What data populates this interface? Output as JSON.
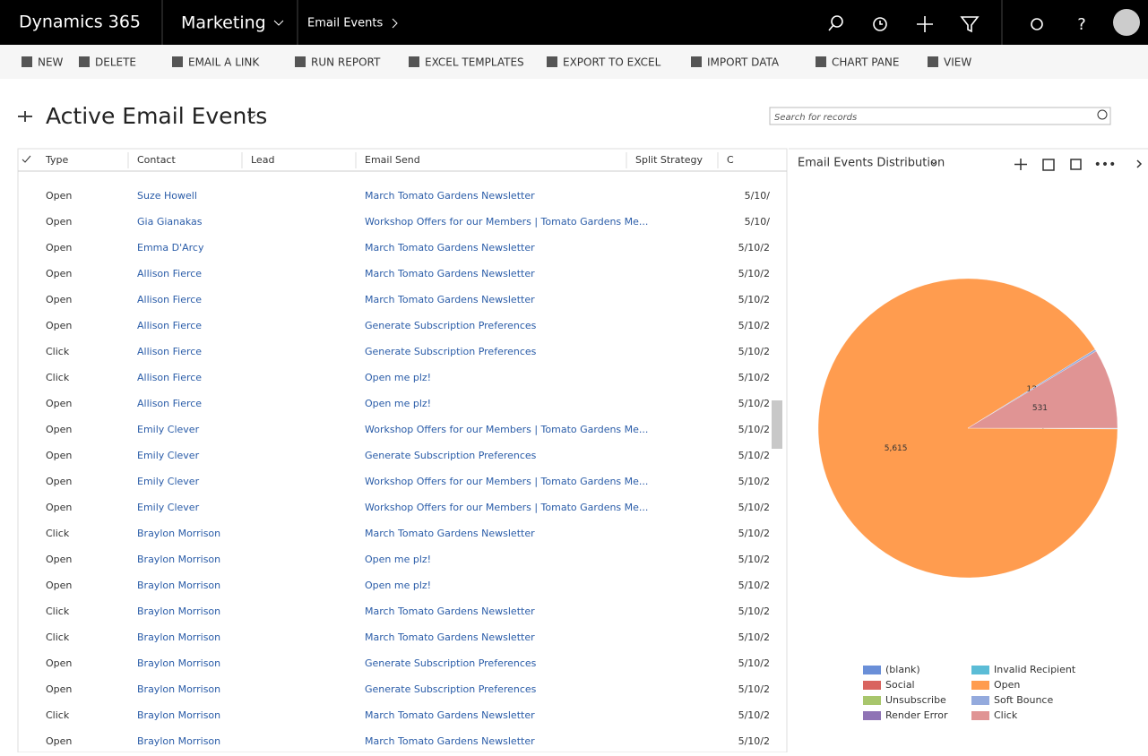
{
  "header": {
    "app": "Dynamics 365",
    "area": "Marketing",
    "breadcrumb": "Email Events"
  },
  "toolbar": [
    "NEW",
    "DELETE",
    "EMAIL A LINK",
    "RUN REPORT",
    "EXCEL TEMPLATES",
    "EXPORT TO EXCEL",
    "IMPORT DATA",
    "CHART PANE",
    "VIEW"
  ],
  "view": {
    "title": "Active Email Events",
    "search_placeholder": "Search for records"
  },
  "grid": {
    "columns": [
      "Type",
      "Contact",
      "Lead",
      "Email Send",
      "Split Strategy",
      "C"
    ],
    "rows": [
      [
        "Open",
        "Suze Howell",
        "March Tomato Gardens Newsletter",
        "5/10/"
      ],
      [
        "Open",
        "Gia Gianakas",
        "Workshop Offers for our Members | Tomato Gardens Me...",
        "5/10/"
      ],
      [
        "Open",
        "Emma D'Arcy",
        "March Tomato Gardens Newsletter",
        "5/10/2"
      ],
      [
        "Open",
        "Allison Fierce",
        "March Tomato Gardens Newsletter",
        "5/10/2"
      ],
      [
        "Open",
        "Allison Fierce",
        "March Tomato Gardens Newsletter",
        "5/10/2"
      ],
      [
        "Open",
        "Allison Fierce",
        "Generate Subscription Preferences",
        "5/10/2"
      ],
      [
        "Click",
        "Allison Fierce",
        "Generate Subscription Preferences",
        "5/10/2"
      ],
      [
        "Click",
        "Allison Fierce",
        "Open me plz!",
        "5/10/2"
      ],
      [
        "Open",
        "Allison Fierce",
        "Open me plz!",
        "5/10/2"
      ],
      [
        "Open",
        "Emily Clever",
        "Workshop Offers for our Members | Tomato Gardens Me...",
        "5/10/2"
      ],
      [
        "Open",
        "Emily Clever",
        "Generate Subscription Preferences",
        "5/10/2"
      ],
      [
        "Open",
        "Emily Clever",
        "Workshop Offers for our Members | Tomato Gardens Me...",
        "5/10/2"
      ],
      [
        "Open",
        "Emily Clever",
        "Workshop Offers for our Members | Tomato Gardens Me...",
        "5/10/2"
      ],
      [
        "Click",
        "Braylon Morrison",
        "March Tomato Gardens Newsletter",
        "5/10/2"
      ],
      [
        "Open",
        "Braylon Morrison",
        "Open me plz!",
        "5/10/2"
      ],
      [
        "Open",
        "Braylon Morrison",
        "Open me plz!",
        "5/10/2"
      ],
      [
        "Click",
        "Braylon Morrison",
        "March Tomato Gardens Newsletter",
        "5/10/2"
      ],
      [
        "Click",
        "Braylon Morrison",
        "March Tomato Gardens Newsletter",
        "5/10/2"
      ],
      [
        "Open",
        "Braylon Morrison",
        "Generate Subscription Preferences",
        "5/10/2"
      ],
      [
        "Open",
        "Braylon Morrison",
        "Generate Subscription Preferences",
        "5/10/2"
      ],
      [
        "Click",
        "Braylon Morrison",
        "March Tomato Gardens Newsletter",
        "5/10/2"
      ],
      [
        "Open",
        "Braylon Morrison",
        "March Tomato Gardens Newsletter",
        "5/10/2"
      ]
    ]
  },
  "chart_data": {
    "type": "pie",
    "title": "Email Events Distribution",
    "categories": [
      "(blank)",
      "Social",
      "Unsubscribe",
      "Render Error",
      "Invalid Recipient",
      "Open",
      "Soft Bounce",
      "Click"
    ],
    "values": [
      4,
      0,
      0,
      0,
      2,
      5615,
      13,
      531
    ],
    "value_labels": [
      "4",
      null,
      null,
      null,
      "2",
      "5,615",
      "13",
      "531"
    ],
    "colors": [
      "#6a8fd8",
      "#d9645f",
      "#a8c66c",
      "#8f73b5",
      "#5bbcd6",
      "#ff9c4f",
      "#94aadd",
      "#e09494"
    ]
  }
}
